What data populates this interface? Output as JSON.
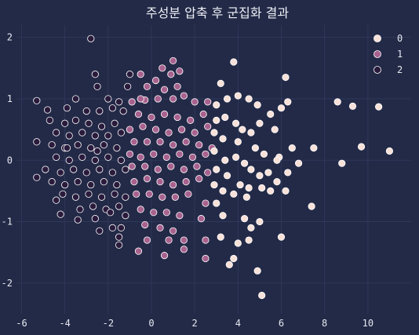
{
  "chart_data": {
    "type": "scatter",
    "title": "주성분 압축 후 군집화 결과",
    "xlabel": "",
    "ylabel": "",
    "xlim": [
      -6.2,
      12.0
    ],
    "ylim": [
      -2.5,
      2.2
    ],
    "xticks": [
      -6,
      -4,
      -2,
      0,
      2,
      4,
      6,
      8,
      10
    ],
    "yticks": [
      -2,
      -1,
      0,
      1,
      2
    ],
    "grid": true,
    "legend_position": "top-right",
    "colors": {
      "0": "#f7e1d9",
      "1": "#a8628f",
      "2": "#2a1b3d",
      "edge": "#ffffff"
    },
    "series": [
      {
        "name": "0",
        "points": [
          [
            3.8,
            1.6
          ],
          [
            6.2,
            1.35
          ],
          [
            3.2,
            1.25
          ],
          [
            8.6,
            0.95
          ],
          [
            9.3,
            0.88
          ],
          [
            10.5,
            0.87
          ],
          [
            6.3,
            0.95
          ],
          [
            6.0,
            0.85
          ],
          [
            5.5,
            0.75
          ],
          [
            4.0,
            1.05
          ],
          [
            4.5,
            1.0
          ],
          [
            3.5,
            1.0
          ],
          [
            3.0,
            0.65
          ],
          [
            3.4,
            0.7
          ],
          [
            3.9,
            0.6
          ],
          [
            4.2,
            0.5
          ],
          [
            4.6,
            0.45
          ],
          [
            5.0,
            0.6
          ],
          [
            5.7,
            0.5
          ],
          [
            2.9,
            0.45
          ],
          [
            3.3,
            0.35
          ],
          [
            4.0,
            0.3
          ],
          [
            4.8,
            0.2
          ],
          [
            5.2,
            0.1
          ],
          [
            5.9,
            0.05
          ],
          [
            6.5,
            0.2
          ],
          [
            7.5,
            0.2
          ],
          [
            9.7,
            0.22
          ],
          [
            11.0,
            0.15
          ],
          [
            6.8,
            -0.05
          ],
          [
            8.8,
            -0.05
          ],
          [
            6.3,
            -0.2
          ],
          [
            2.9,
            0.15
          ],
          [
            3.4,
            0.0
          ],
          [
            3.9,
            0.05
          ],
          [
            4.3,
            -0.05
          ],
          [
            4.6,
            -0.15
          ],
          [
            5.0,
            -0.25
          ],
          [
            5.4,
            -0.2
          ],
          [
            5.8,
            -0.35
          ],
          [
            3.0,
            -0.15
          ],
          [
            3.5,
            -0.25
          ],
          [
            4.1,
            -0.4
          ],
          [
            4.5,
            -0.45
          ],
          [
            5.1,
            -0.45
          ],
          [
            5.5,
            -0.5
          ],
          [
            6.2,
            -0.5
          ],
          [
            2.9,
            -0.4
          ],
          [
            3.3,
            -0.5
          ],
          [
            3.8,
            -0.55
          ],
          [
            4.4,
            -0.6
          ],
          [
            3.0,
            -0.7
          ],
          [
            3.3,
            -0.9
          ],
          [
            4.3,
            -0.95
          ],
          [
            5.0,
            -1.0
          ],
          [
            7.4,
            -0.75
          ],
          [
            4.6,
            -1.1
          ],
          [
            3.2,
            -1.25
          ],
          [
            4.0,
            -1.35
          ],
          [
            4.5,
            -1.3
          ],
          [
            6.0,
            -1.25
          ],
          [
            3.8,
            -1.6
          ],
          [
            3.6,
            -1.7
          ],
          [
            4.9,
            -1.8
          ],
          [
            5.1,
            -2.2
          ],
          [
            3.0,
            0.9
          ],
          [
            4.9,
            0.9
          ],
          [
            5.8,
            0.0
          ]
        ]
      },
      {
        "name": "1",
        "points": [
          [
            1.0,
            1.62
          ],
          [
            0.5,
            1.5
          ],
          [
            -0.5,
            1.4
          ],
          [
            0.9,
            1.4
          ],
          [
            1.3,
            1.45
          ],
          [
            0.2,
            1.3
          ],
          [
            -0.2,
            1.2
          ],
          [
            0.6,
            1.15
          ],
          [
            1.2,
            1.2
          ],
          [
            -0.9,
            0.95
          ],
          [
            -0.3,
            0.98
          ],
          [
            0.3,
            1.0
          ],
          [
            1.0,
            1.0
          ],
          [
            1.5,
            1.05
          ],
          [
            2.0,
            0.95
          ],
          [
            2.6,
            0.95
          ],
          [
            -0.6,
            0.75
          ],
          [
            0.0,
            0.7
          ],
          [
            0.6,
            0.75
          ],
          [
            1.2,
            0.7
          ],
          [
            1.8,
            0.65
          ],
          [
            2.4,
            0.75
          ],
          [
            -1.0,
            0.5
          ],
          [
            -0.4,
            0.55
          ],
          [
            0.2,
            0.5
          ],
          [
            0.8,
            0.45
          ],
          [
            1.4,
            0.5
          ],
          [
            2.0,
            0.45
          ],
          [
            2.6,
            0.55
          ],
          [
            -0.8,
            0.3
          ],
          [
            -0.2,
            0.3
          ],
          [
            0.4,
            0.3
          ],
          [
            1.0,
            0.25
          ],
          [
            1.6,
            0.3
          ],
          [
            2.2,
            0.25
          ],
          [
            -1.0,
            0.1
          ],
          [
            -0.5,
            0.05
          ],
          [
            0.1,
            0.1
          ],
          [
            0.7,
            0.05
          ],
          [
            1.3,
            0.1
          ],
          [
            1.9,
            0.05
          ],
          [
            2.5,
            0.1
          ],
          [
            -0.9,
            -0.1
          ],
          [
            -0.3,
            -0.1
          ],
          [
            0.3,
            -0.15
          ],
          [
            0.9,
            -0.1
          ],
          [
            1.5,
            -0.15
          ],
          [
            2.1,
            -0.1
          ],
          [
            2.6,
            -0.2
          ],
          [
            -0.8,
            -0.35
          ],
          [
            -0.2,
            -0.3
          ],
          [
            0.4,
            -0.35
          ],
          [
            1.0,
            -0.4
          ],
          [
            1.6,
            -0.35
          ],
          [
            2.2,
            -0.3
          ],
          [
            -0.7,
            -0.55
          ],
          [
            -0.1,
            -0.55
          ],
          [
            0.5,
            -0.6
          ],
          [
            1.1,
            -0.6
          ],
          [
            1.7,
            -0.55
          ],
          [
            2.5,
            -0.7
          ],
          [
            -0.5,
            -0.8
          ],
          [
            0.1,
            -0.85
          ],
          [
            0.7,
            -0.85
          ],
          [
            1.3,
            -0.9
          ],
          [
            -0.3,
            -1.05
          ],
          [
            0.4,
            -1.1
          ],
          [
            1.0,
            -1.15
          ],
          [
            2.3,
            -0.95
          ],
          [
            -0.2,
            -1.3
          ],
          [
            0.8,
            -1.3
          ],
          [
            1.5,
            -1.3
          ],
          [
            2.5,
            -1.3
          ],
          [
            -0.6,
            -1.48
          ],
          [
            0.6,
            -1.55
          ],
          [
            2.5,
            -1.6
          ],
          [
            1.5,
            -1.45
          ],
          [
            -0.5,
            1.0
          ],
          [
            2.8,
            0.2
          ]
        ]
      },
      {
        "name": "2",
        "points": [
          [
            -2.8,
            1.98
          ],
          [
            -2.6,
            1.4
          ],
          [
            -1.0,
            1.4
          ],
          [
            -2.5,
            1.2
          ],
          [
            -1.1,
            1.2
          ],
          [
            -5.3,
            0.97
          ],
          [
            -3.5,
            1.0
          ],
          [
            -2.0,
            1.0
          ],
          [
            -1.5,
            0.95
          ],
          [
            -4.8,
            0.82
          ],
          [
            -3.9,
            0.85
          ],
          [
            -3.0,
            0.8
          ],
          [
            -2.4,
            0.8
          ],
          [
            -1.8,
            0.85
          ],
          [
            -1.3,
            0.8
          ],
          [
            -4.7,
            0.65
          ],
          [
            -4.0,
            0.6
          ],
          [
            -3.5,
            0.65
          ],
          [
            -2.9,
            0.6
          ],
          [
            -2.3,
            0.55
          ],
          [
            -1.7,
            0.6
          ],
          [
            -4.4,
            0.45
          ],
          [
            -3.8,
            0.4
          ],
          [
            -3.2,
            0.45
          ],
          [
            -2.6,
            0.4
          ],
          [
            -2.0,
            0.4
          ],
          [
            -1.4,
            0.45
          ],
          [
            -4.6,
            0.25
          ],
          [
            -4.0,
            0.2
          ],
          [
            -3.4,
            0.25
          ],
          [
            -2.8,
            0.2
          ],
          [
            -2.2,
            0.25
          ],
          [
            -1.6,
            0.2
          ],
          [
            -5.3,
            0.3
          ],
          [
            -4.4,
            0.05
          ],
          [
            -3.8,
            0.0
          ],
          [
            -3.2,
            0.05
          ],
          [
            -2.6,
            0.0
          ],
          [
            -2.0,
            0.05
          ],
          [
            -1.4,
            0.0
          ],
          [
            -4.9,
            -0.15
          ],
          [
            -4.2,
            -0.2
          ],
          [
            -3.6,
            -0.15
          ],
          [
            -3.0,
            -0.2
          ],
          [
            -2.4,
            -0.15
          ],
          [
            -1.8,
            -0.2
          ],
          [
            -1.2,
            -0.15
          ],
          [
            -5.3,
            -0.28
          ],
          [
            -4.6,
            -0.35
          ],
          [
            -4.0,
            -0.4
          ],
          [
            -3.4,
            -0.35
          ],
          [
            -2.8,
            -0.4
          ],
          [
            -2.2,
            -0.35
          ],
          [
            -1.6,
            -0.4
          ],
          [
            -4.1,
            -0.55
          ],
          [
            -3.5,
            -0.6
          ],
          [
            -2.9,
            -0.55
          ],
          [
            -2.3,
            -0.6
          ],
          [
            -1.7,
            -0.55
          ],
          [
            -1.2,
            -0.6
          ],
          [
            -4.4,
            -0.65
          ],
          [
            -3.3,
            -0.8
          ],
          [
            -2.7,
            -0.75
          ],
          [
            -2.1,
            -0.8
          ],
          [
            -1.5,
            -0.75
          ],
          [
            -4.2,
            -0.88
          ],
          [
            -3.4,
            -0.97
          ],
          [
            -2.6,
            -0.95
          ],
          [
            -1.9,
            -0.85
          ],
          [
            -1.2,
            -0.9
          ],
          [
            -1.8,
            -1.1
          ],
          [
            -1.4,
            -1.1
          ],
          [
            -2.4,
            -1.15
          ],
          [
            -1.5,
            -1.25
          ],
          [
            -1.5,
            -1.38
          ],
          [
            -3.9,
            0.2
          ],
          [
            -2.5,
            0.15
          ]
        ]
      }
    ]
  }
}
